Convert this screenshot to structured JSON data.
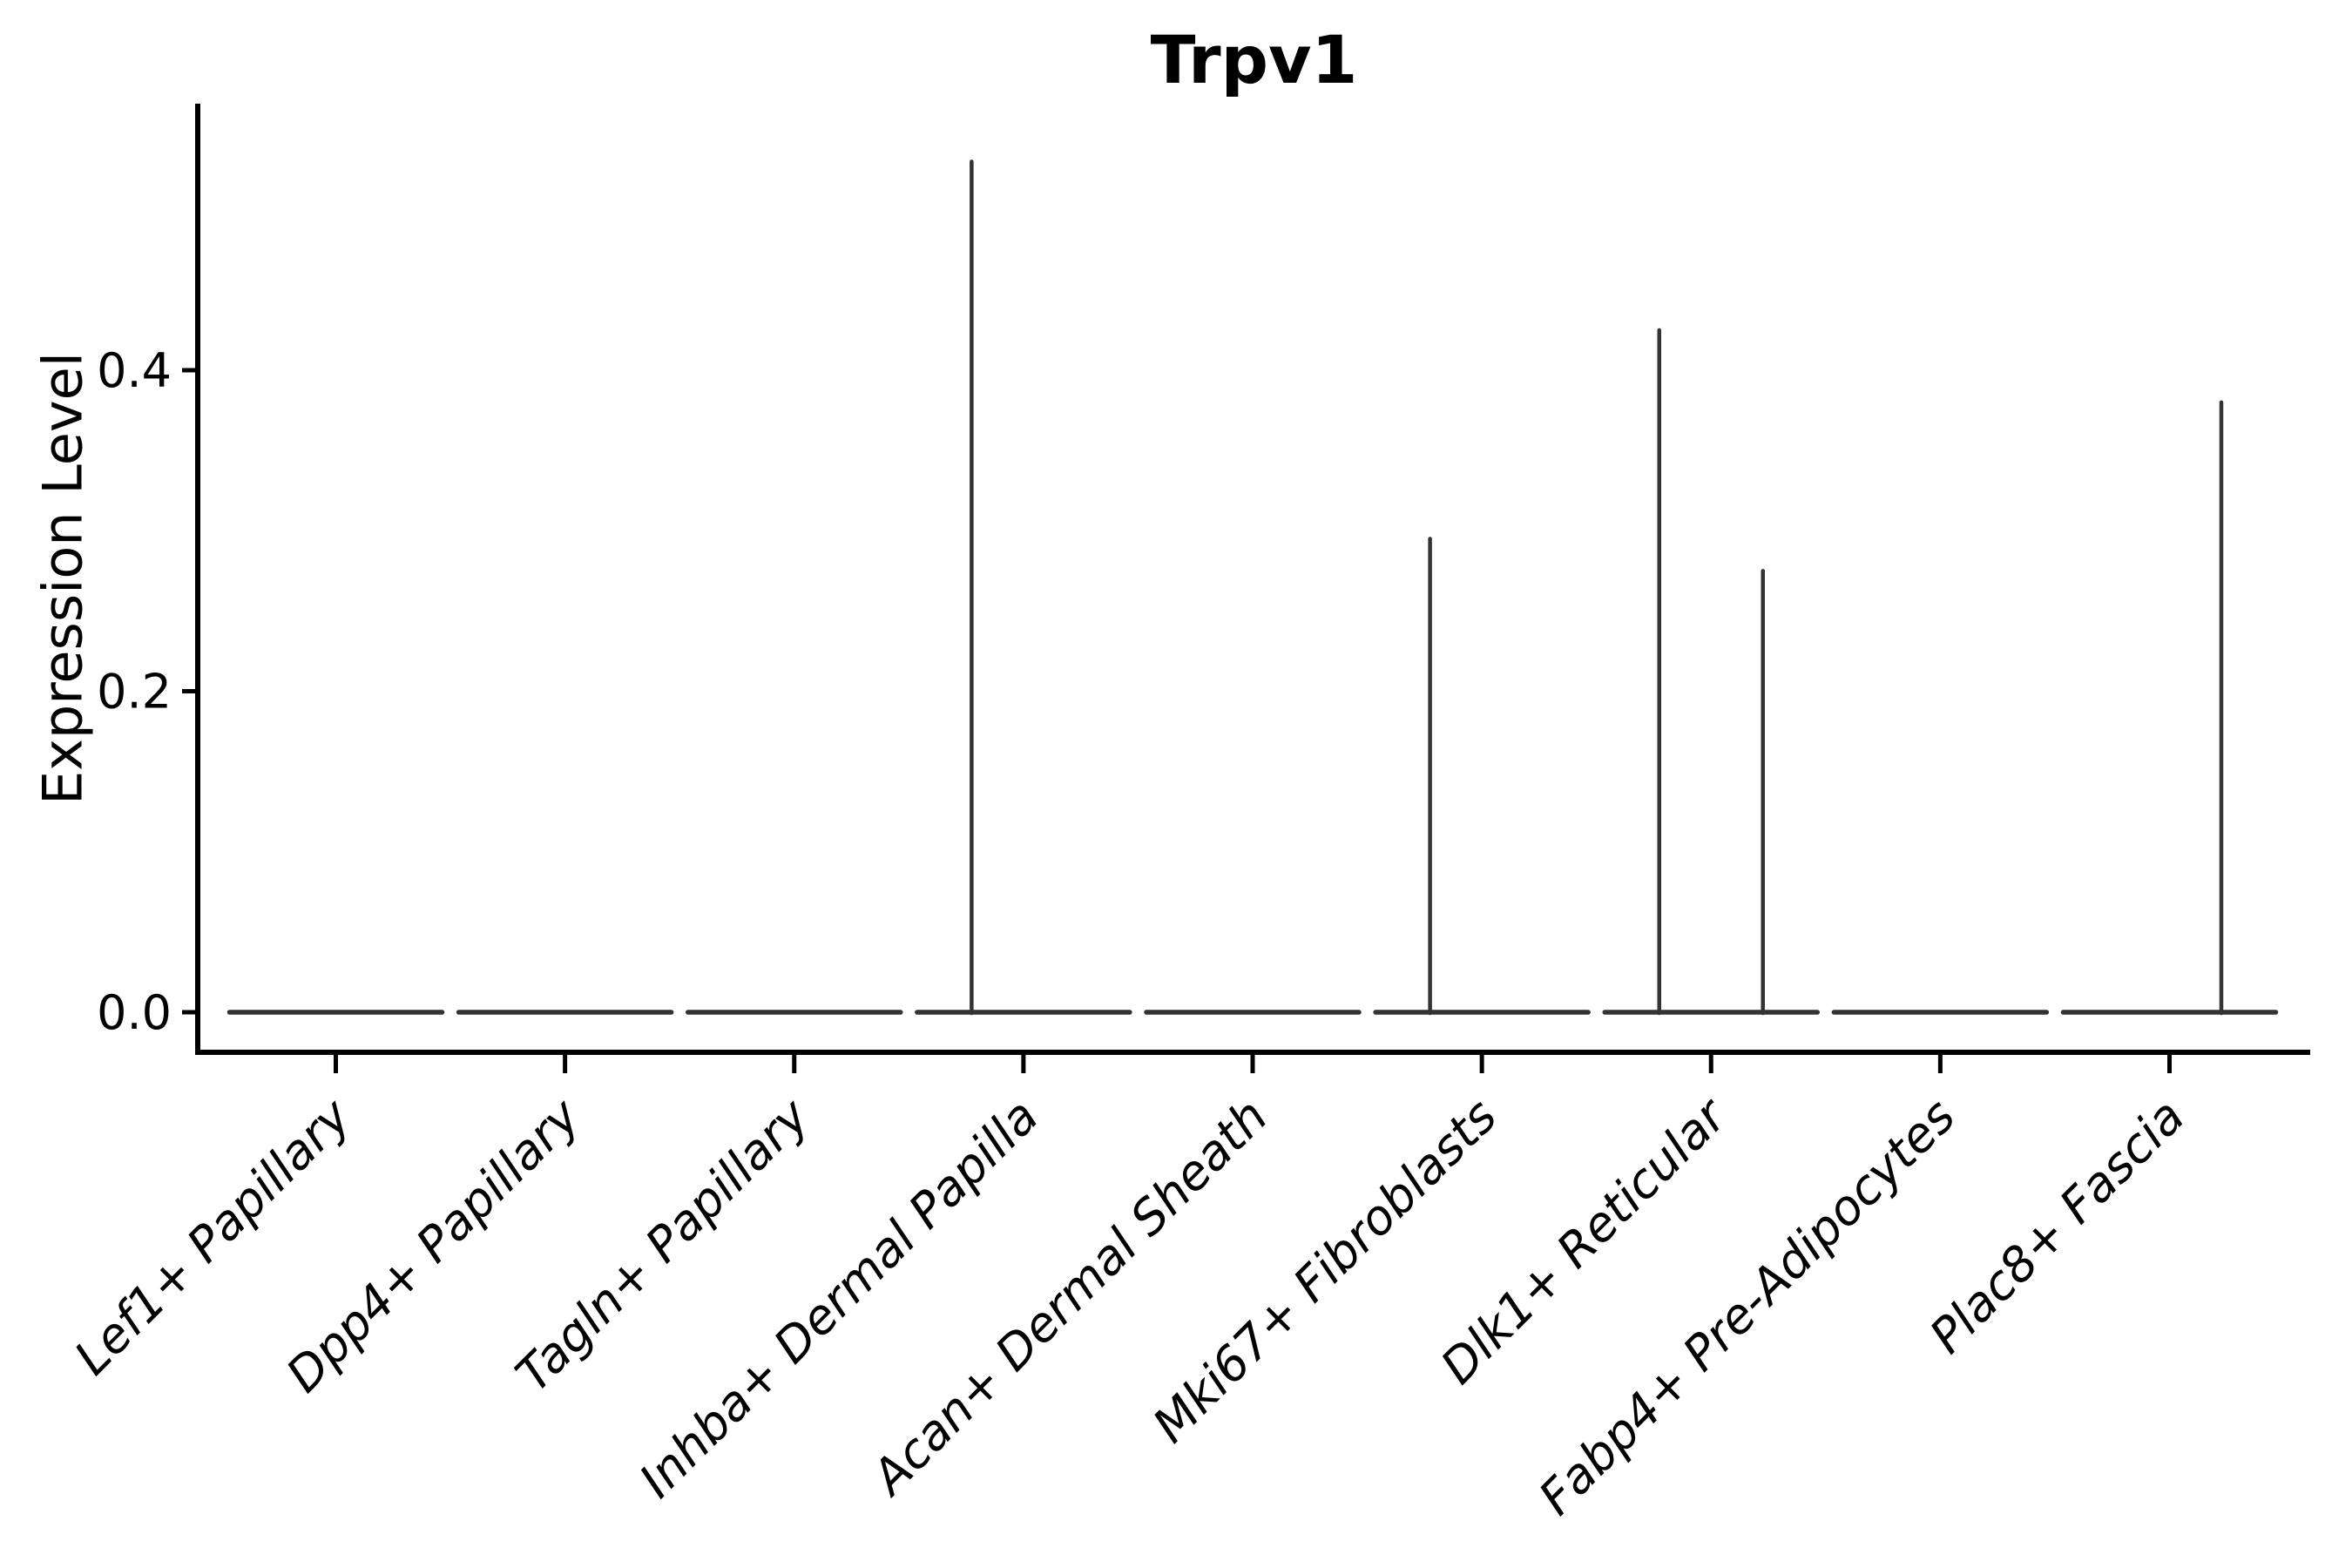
{
  "page": {
    "background": "#ffffff"
  },
  "chart_data": {
    "type": "violin",
    "title": "Trpv1",
    "ylabel": "Expression Level",
    "xlabel": "",
    "ylim": [
      0,
      0.57
    ],
    "grid": false,
    "legend": "none",
    "yticks": [
      {
        "value": 0.0,
        "label": "0.0"
      },
      {
        "value": 0.2,
        "label": "0.2"
      },
      {
        "value": 0.4,
        "label": "0.4"
      }
    ],
    "categories": [
      "Lef1+ Papillary",
      "Dpp4+ Papillary",
      "Tagln+ Papillary",
      "Inhba+ Dermal Papilla",
      "Acan+ Dermal Sheath",
      "Mki67+ Fibroblasts",
      "Dlk1+ Reticular",
      "Fabp4+ Pre-Adipocytes",
      "Plac8+ Fascia"
    ],
    "violins": [
      {
        "category": "Lef1+ Papillary",
        "baseline_value": 0.0,
        "spikes": []
      },
      {
        "category": "Dpp4+ Papillary",
        "baseline_value": 0.0,
        "spikes": []
      },
      {
        "category": "Tagln+ Papillary",
        "baseline_value": 0.0,
        "spikes": []
      },
      {
        "category": "Inhba+ Dermal Papilla",
        "baseline_value": 0.0,
        "spikes": [
          {
            "side": "left",
            "max_value": 0.53
          }
        ]
      },
      {
        "category": "Acan+ Dermal Sheath",
        "baseline_value": 0.0,
        "spikes": []
      },
      {
        "category": "Mki67+ Fibroblasts",
        "baseline_value": 0.0,
        "spikes": [
          {
            "side": "left",
            "max_value": 0.295
          }
        ]
      },
      {
        "category": "Dlk1+ Reticular",
        "baseline_value": 0.0,
        "spikes": [
          {
            "side": "left",
            "max_value": 0.425
          },
          {
            "side": "right",
            "max_value": 0.275
          }
        ]
      },
      {
        "category": "Fabp4+ Pre-Adipocytes",
        "baseline_value": 0.0,
        "spikes": []
      },
      {
        "category": "Plac8+ Fascia",
        "baseline_value": 0.0,
        "spikes": [
          {
            "side": "right",
            "max_value": 0.38
          }
        ]
      }
    ],
    "colors": {
      "violin": "#333333",
      "axis": "#000000",
      "text": "#000000",
      "background": "#ffffff"
    }
  }
}
